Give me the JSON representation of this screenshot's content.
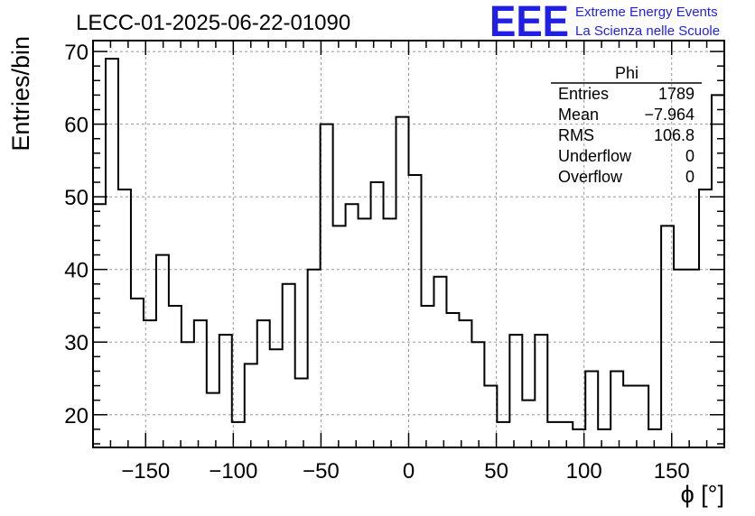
{
  "title": "LECC-01-2025-06-22-01090",
  "logo": {
    "letters": "EEE",
    "line1": "Extreme Energy Events",
    "line2": "La Scienza nelle Scuole",
    "color": "#1f1fe6"
  },
  "stats": {
    "name": "Phi",
    "rows": [
      {
        "label": "Entries",
        "value": "1789"
      },
      {
        "label": "Mean",
        "value": "−7.964"
      },
      {
        "label": "RMS",
        "value": "106.8"
      },
      {
        "label": "Underflow",
        "value": "0"
      },
      {
        "label": "Overflow",
        "value": "0"
      }
    ]
  },
  "chart_data": {
    "type": "histogram",
    "title": "LECC-01-2025-06-22-01090",
    "xlabel": "ϕ [°]",
    "ylabel": "Entries/bin",
    "xlim": [
      -180,
      180
    ],
    "ylim": [
      15.5,
      71.5
    ],
    "bin_width": 7.2,
    "bin_edges_start": -180,
    "values": [
      49,
      69,
      51,
      36,
      33,
      42,
      35,
      30,
      33,
      23,
      31,
      19,
      27,
      33,
      29,
      38,
      25,
      40,
      60,
      46,
      49,
      47,
      52,
      47,
      61,
      53,
      35,
      39,
      34,
      33,
      30,
      24,
      19,
      31,
      22,
      31,
      19,
      19,
      18,
      26,
      18,
      26,
      24,
      24,
      18,
      46,
      40,
      40,
      51,
      64
    ],
    "xticks": [
      -150,
      -100,
      -50,
      0,
      50,
      100,
      150
    ],
    "xtick_labels": [
      "−150",
      "−100",
      "−50",
      "0",
      "50",
      "100",
      "150"
    ],
    "yticks": [
      20,
      30,
      40,
      50,
      60,
      70
    ],
    "ytick_labels": [
      "20",
      "30",
      "40",
      "50",
      "60",
      "70"
    ],
    "grid": true,
    "line_color": "#000000"
  }
}
